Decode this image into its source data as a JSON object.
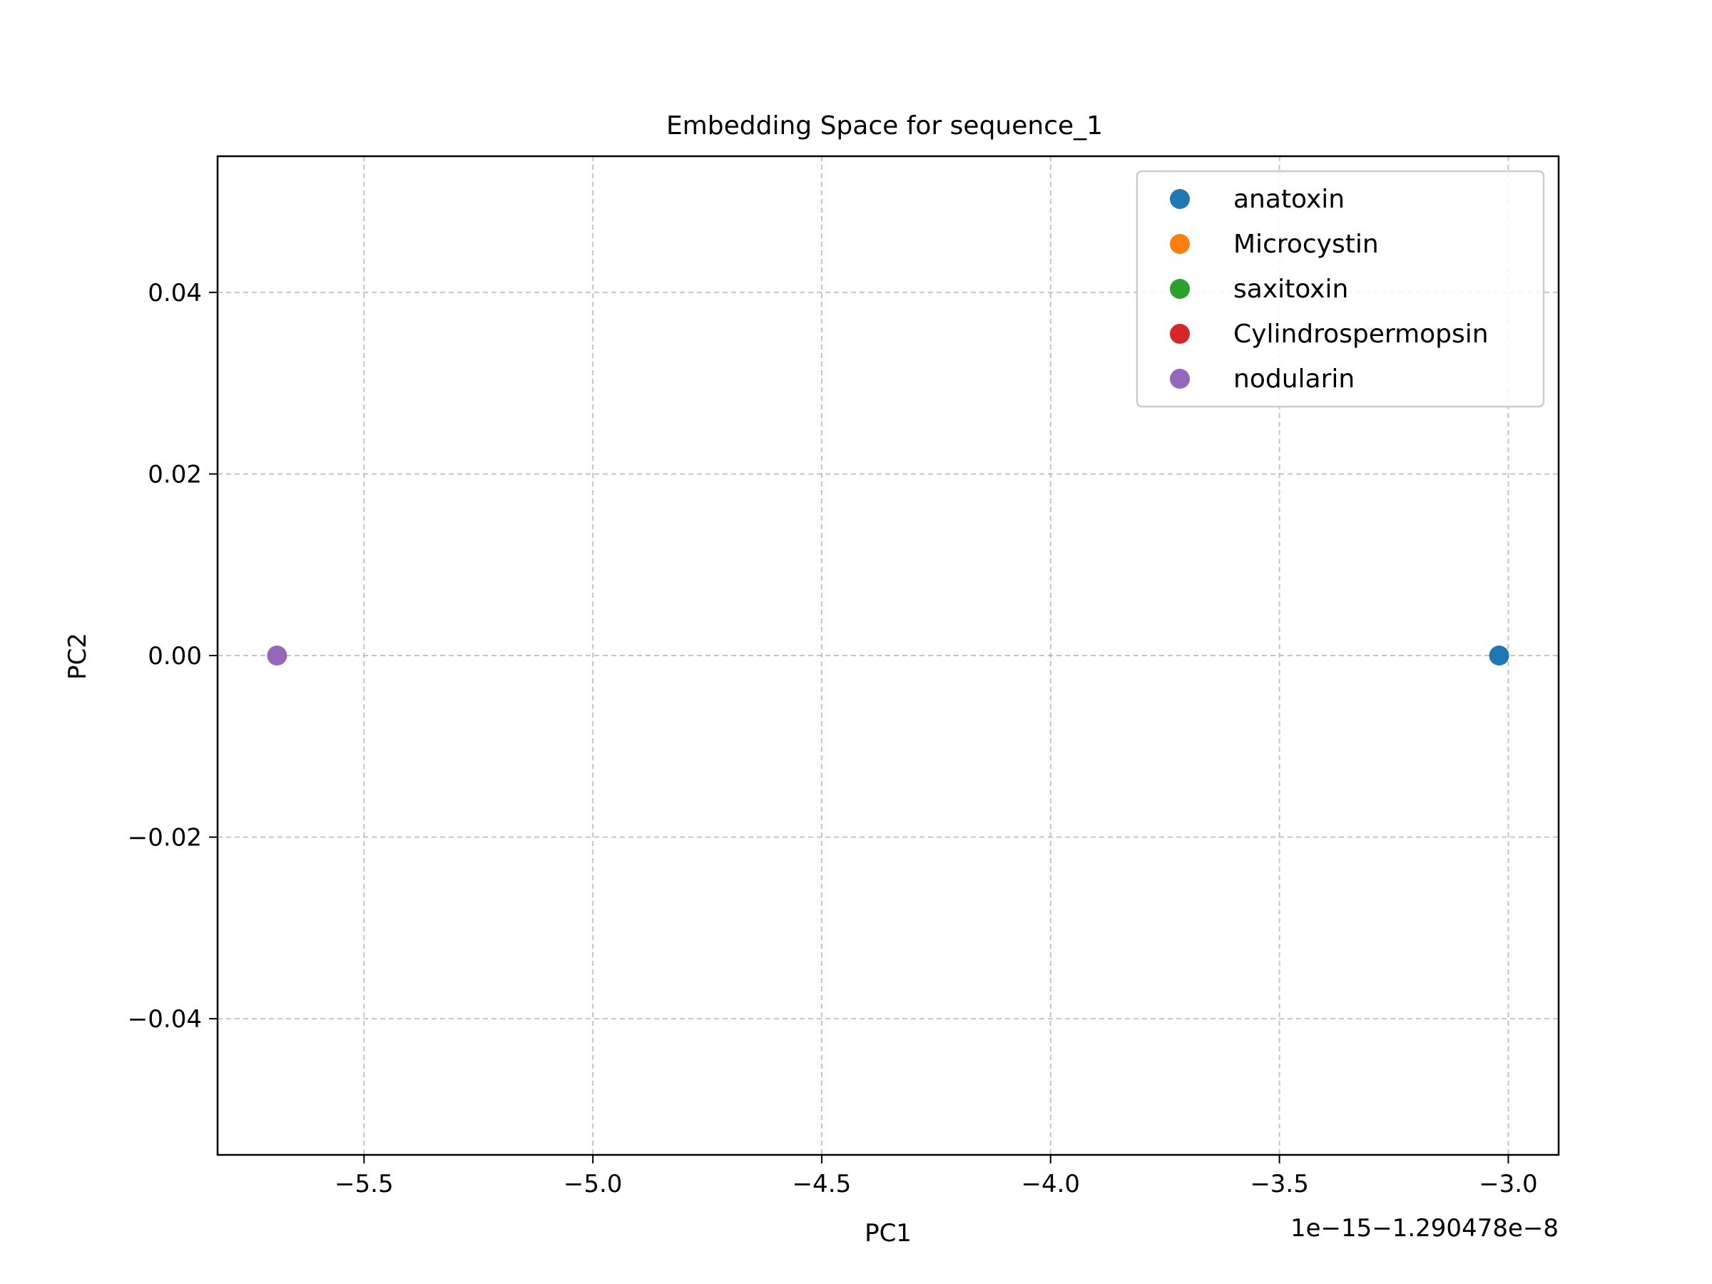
{
  "chart_data": {
    "type": "scatter",
    "title": "Embedding Space for sequence_1",
    "xlabel": "PC1",
    "ylabel": "PC2",
    "x_offset_text": "1e−15−1.290478e−8",
    "xlim": [
      -5.82,
      -2.89
    ],
    "ylim": [
      -0.055,
      0.055
    ],
    "xticks": [
      -5.5,
      -5.0,
      -4.5,
      -4.0,
      -3.5,
      -3.0
    ],
    "yticks": [
      0.04,
      0.02,
      0.0,
      -0.02,
      -0.04
    ],
    "xtick_labels": [
      "−5.5",
      "−5.0",
      "−4.5",
      "−4.0",
      "−3.5",
      "−3.0"
    ],
    "ytick_labels": [
      "0.04",
      "0.02",
      "0.00",
      "−0.02",
      "−0.04"
    ],
    "grid": true,
    "grid_style": "dashed",
    "legend_position": "top-right",
    "series": [
      {
        "name": "anatoxin",
        "color": "#1f77b4",
        "points": [
          {
            "x": -3.02,
            "y": 0.0
          }
        ]
      },
      {
        "name": "Microcystin",
        "color": "#ff7f0e",
        "points": []
      },
      {
        "name": "saxitoxin",
        "color": "#2ca02c",
        "points": []
      },
      {
        "name": "Cylindrospermopsin",
        "color": "#d62728",
        "points": []
      },
      {
        "name": "nodularin",
        "color": "#9467bd",
        "points": [
          {
            "x": -5.69,
            "y": 0.0
          }
        ]
      }
    ]
  }
}
